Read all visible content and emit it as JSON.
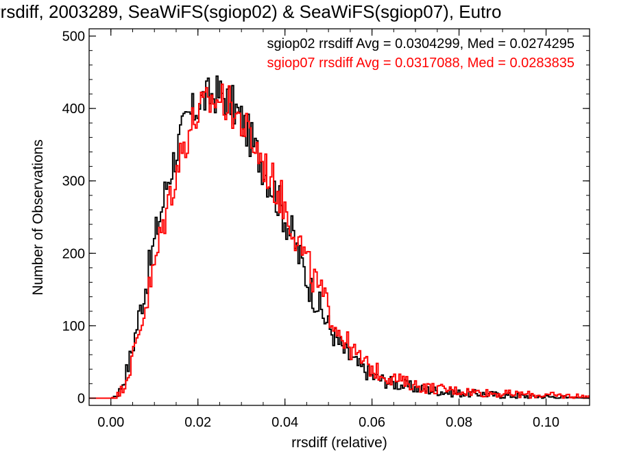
{
  "chart_data": {
    "type": "histogram",
    "title": "rrsdiff, 2003289, SeaWiFS(sgiop02) & SeaWiFS(sgiop07), Eutro",
    "xlabel": "rrsdiff (relative)",
    "ylabel": "Number of Observations",
    "xlim": [
      -0.005,
      0.11
    ],
    "ylim": [
      -10,
      510
    ],
    "xticks": [
      0.0,
      0.02,
      0.04,
      0.06,
      0.08,
      0.1
    ],
    "xtick_labels": [
      "0.00",
      "0.02",
      "0.04",
      "0.06",
      "0.08",
      "0.10"
    ],
    "yticks": [
      0,
      100,
      200,
      300,
      400,
      500
    ],
    "ytick_labels": [
      "0",
      "100",
      "200",
      "300",
      "400",
      "500"
    ],
    "grid": false,
    "bin_width": 0.0004,
    "series": [
      {
        "name": "sgiop02",
        "color": "#000000",
        "legend": "sgiop02 rrsdiff Avg = 0.0304299, Med = 0.0274295",
        "points": [
          [
            -0.0004,
            0
          ],
          [
            0.0,
            0
          ],
          [
            0.001,
            3
          ],
          [
            0.002,
            10
          ],
          [
            0.003,
            25
          ],
          [
            0.004,
            45
          ],
          [
            0.005,
            70
          ],
          [
            0.006,
            100
          ],
          [
            0.007,
            130
          ],
          [
            0.008,
            155
          ],
          [
            0.009,
            185
          ],
          [
            0.01,
            215
          ],
          [
            0.011,
            245
          ],
          [
            0.012,
            270
          ],
          [
            0.013,
            300
          ],
          [
            0.014,
            320
          ],
          [
            0.015,
            340
          ],
          [
            0.016,
            360
          ],
          [
            0.017,
            375
          ],
          [
            0.018,
            390
          ],
          [
            0.019,
            395
          ],
          [
            0.02,
            405
          ],
          [
            0.021,
            412
          ],
          [
            0.022,
            415
          ],
          [
            0.023,
            418
          ],
          [
            0.024,
            420
          ],
          [
            0.025,
            420
          ],
          [
            0.026,
            418
          ],
          [
            0.027,
            412
          ],
          [
            0.028,
            405
          ],
          [
            0.029,
            395
          ],
          [
            0.03,
            385
          ],
          [
            0.031,
            372
          ],
          [
            0.032,
            360
          ],
          [
            0.033,
            345
          ],
          [
            0.034,
            335
          ],
          [
            0.035,
            320
          ],
          [
            0.036,
            305
          ],
          [
            0.037,
            295
          ],
          [
            0.038,
            280
          ],
          [
            0.039,
            265
          ],
          [
            0.04,
            250
          ],
          [
            0.041,
            235
          ],
          [
            0.042,
            220
          ],
          [
            0.043,
            200
          ],
          [
            0.044,
            185
          ],
          [
            0.045,
            165
          ],
          [
            0.046,
            150
          ],
          [
            0.047,
            138
          ],
          [
            0.048,
            126
          ],
          [
            0.049,
            112
          ],
          [
            0.05,
            100
          ],
          [
            0.051,
            90
          ],
          [
            0.052,
            80
          ],
          [
            0.053,
            70
          ],
          [
            0.054,
            62
          ],
          [
            0.055,
            56
          ],
          [
            0.056,
            50
          ],
          [
            0.057,
            44
          ],
          [
            0.058,
            40
          ],
          [
            0.059,
            36
          ],
          [
            0.06,
            30
          ],
          [
            0.062,
            26
          ],
          [
            0.064,
            22
          ],
          [
            0.066,
            19
          ],
          [
            0.068,
            17
          ],
          [
            0.07,
            14
          ],
          [
            0.072,
            12
          ],
          [
            0.075,
            10
          ],
          [
            0.078,
            8
          ],
          [
            0.08,
            7
          ],
          [
            0.085,
            6
          ],
          [
            0.09,
            4
          ],
          [
            0.095,
            3
          ],
          [
            0.1,
            2
          ],
          [
            0.105,
            1
          ],
          [
            0.11,
            0
          ]
        ]
      },
      {
        "name": "sgiop07",
        "color": "#ff0000",
        "legend": "sgiop07 rrsdiff Avg = 0.0317088, Med = 0.0283835",
        "points": [
          [
            -0.0004,
            0
          ],
          [
            0.0,
            0
          ],
          [
            0.001,
            2
          ],
          [
            0.002,
            6
          ],
          [
            0.003,
            18
          ],
          [
            0.004,
            35
          ],
          [
            0.005,
            55
          ],
          [
            0.006,
            80
          ],
          [
            0.007,
            105
          ],
          [
            0.008,
            128
          ],
          [
            0.009,
            155
          ],
          [
            0.01,
            180
          ],
          [
            0.011,
            210
          ],
          [
            0.012,
            240
          ],
          [
            0.013,
            265
          ],
          [
            0.014,
            290
          ],
          [
            0.015,
            312
          ],
          [
            0.016,
            335
          ],
          [
            0.017,
            352
          ],
          [
            0.018,
            370
          ],
          [
            0.019,
            382
          ],
          [
            0.02,
            392
          ],
          [
            0.021,
            400
          ],
          [
            0.022,
            405
          ],
          [
            0.023,
            410
          ],
          [
            0.024,
            412
          ],
          [
            0.025,
            412
          ],
          [
            0.026,
            410
          ],
          [
            0.027,
            405
          ],
          [
            0.028,
            398
          ],
          [
            0.029,
            390
          ],
          [
            0.03,
            382
          ],
          [
            0.031,
            370
          ],
          [
            0.032,
            360
          ],
          [
            0.033,
            348
          ],
          [
            0.034,
            338
          ],
          [
            0.035,
            325
          ],
          [
            0.036,
            312
          ],
          [
            0.037,
            300
          ],
          [
            0.038,
            290
          ],
          [
            0.039,
            278
          ],
          [
            0.04,
            264
          ],
          [
            0.041,
            250
          ],
          [
            0.042,
            236
          ],
          [
            0.043,
            220
          ],
          [
            0.044,
            204
          ],
          [
            0.045,
            188
          ],
          [
            0.046,
            172
          ],
          [
            0.047,
            160
          ],
          [
            0.048,
            148
          ],
          [
            0.049,
            136
          ],
          [
            0.05,
            122
          ],
          [
            0.051,
            110
          ],
          [
            0.052,
            98
          ],
          [
            0.053,
            88
          ],
          [
            0.054,
            78
          ],
          [
            0.055,
            70
          ],
          [
            0.056,
            62
          ],
          [
            0.057,
            56
          ],
          [
            0.058,
            50
          ],
          [
            0.059,
            45
          ],
          [
            0.06,
            40
          ],
          [
            0.062,
            34
          ],
          [
            0.064,
            29
          ],
          [
            0.066,
            25
          ],
          [
            0.068,
            21
          ],
          [
            0.07,
            18
          ],
          [
            0.072,
            15
          ],
          [
            0.075,
            13
          ],
          [
            0.078,
            11
          ],
          [
            0.08,
            10
          ],
          [
            0.085,
            8
          ],
          [
            0.09,
            6
          ],
          [
            0.095,
            5
          ],
          [
            0.1,
            4
          ],
          [
            0.105,
            3
          ],
          [
            0.11,
            2
          ]
        ]
      }
    ]
  }
}
